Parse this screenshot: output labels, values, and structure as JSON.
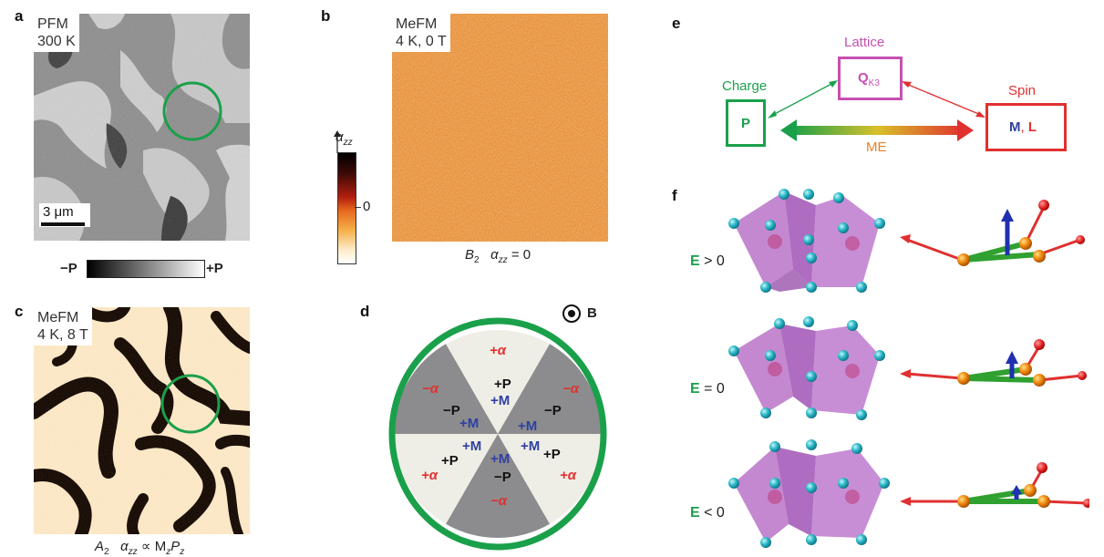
{
  "panels": {
    "a": {
      "label": "a",
      "tag_line1": "PFM",
      "tag_line2": "300 K",
      "scale_bar": "3 μm",
      "colorbar_left": "−P",
      "colorbar_right": "+P"
    },
    "b": {
      "label": "b",
      "tag_line1": "MeFM",
      "tag_line2": "4 K, 0 T",
      "colorbar_axis": "α",
      "colorbar_axis_sub": "zz",
      "colorbar_zero": "0",
      "caption_sym": "B",
      "caption_sym_sub": "2",
      "caption_alpha": "α",
      "caption_alpha_sub": "zz",
      "caption_rest": " = 0"
    },
    "c": {
      "label": "c",
      "tag_line1": "MeFM",
      "tag_line2": "4 K, 8 T",
      "caption_sym": "A",
      "caption_sym_sub": "2",
      "caption_alpha": "α",
      "caption_alpha_sub": "zz",
      "caption_prop": " ∝ M",
      "caption_m_sub": "z",
      "caption_p": "P",
      "caption_p_sub": "z"
    },
    "d": {
      "label": "d",
      "field_symbol": "B",
      "sectors": {
        "top": "+α",
        "upper_left": "−α",
        "upper_right": "−α",
        "lower_left": "+α",
        "lower_right": "+α",
        "bottom": "−α"
      },
      "center_labels": {
        "top_p": "+P",
        "top_m": "+M",
        "ul_p": "−P",
        "ul_m": "+M",
        "ur_p": "−P",
        "ur_m": "+M",
        "ll_m": "+M",
        "ll_p": "+P",
        "lr_m": "+M",
        "lr_p": "+P",
        "bottom_m": "+M",
        "bottom_p": "−P"
      }
    },
    "e": {
      "label": "e",
      "lattice_label": "Lattice",
      "lattice_box": "Q",
      "lattice_box_sub": "K3",
      "charge_label": "Charge",
      "charge_box": "P",
      "spin_label": "Spin",
      "spin_box_m": "M",
      "spin_box_sep": ", ",
      "spin_box_l": "L",
      "me_label": "ME"
    },
    "f": {
      "label": "f",
      "rows": [
        {
          "field": "E",
          "relation": " > 0"
        },
        {
          "field": "E",
          "relation": " = 0"
        },
        {
          "field": "E",
          "relation": " < 0"
        }
      ]
    }
  },
  "colors": {
    "green": "#1aa04a",
    "magenta": "#c74fb0",
    "red": "#e03030",
    "blue": "#3040a0",
    "orange": "#e6802a",
    "sector_light": "#efeee6",
    "sector_dark": "#8c8c8e"
  }
}
